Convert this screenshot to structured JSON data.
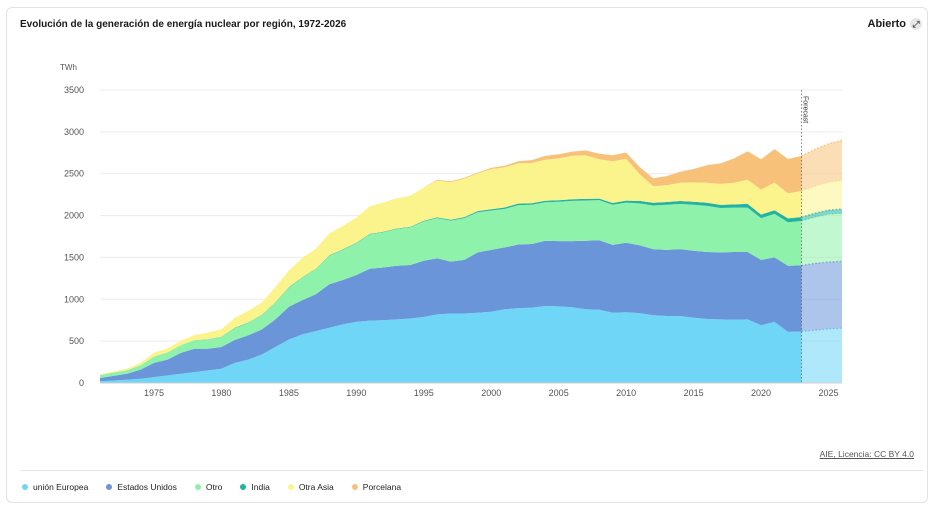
{
  "header": {
    "title": "Evolución de la generación de energía nuclear por región, 1972-2026",
    "open_label": "Abierto",
    "open_icon": "expand-icon"
  },
  "source": "AIE, Licencia: CC BY 4.0",
  "chart_data": {
    "type": "area",
    "stacked": true,
    "ylabel": "TWh",
    "ylim": [
      0,
      3500
    ],
    "yticks": [
      0,
      500,
      1000,
      1500,
      2000,
      2500,
      3000,
      3500
    ],
    "xticks": [
      1975,
      1980,
      1985,
      1990,
      1995,
      2000,
      2005,
      2010,
      2015,
      2020,
      2025
    ],
    "grid": true,
    "legend_position": "bottom",
    "forecast_label": "Forecast",
    "forecast_start": 2023,
    "x": [
      1971,
      1972,
      1973,
      1974,
      1975,
      1976,
      1977,
      1978,
      1979,
      1980,
      1981,
      1982,
      1983,
      1984,
      1985,
      1986,
      1987,
      1988,
      1989,
      1990,
      1991,
      1992,
      1993,
      1994,
      1995,
      1996,
      1997,
      1998,
      1999,
      2000,
      2001,
      2002,
      2003,
      2004,
      2005,
      2006,
      2007,
      2008,
      2009,
      2010,
      2011,
      2012,
      2013,
      2014,
      2015,
      2016,
      2017,
      2018,
      2019,
      2020,
      2021,
      2022,
      2023,
      2024,
      2025,
      2026
    ],
    "series": [
      {
        "name": "unión Europea",
        "color": "#6fd6f7",
        "values": [
          20,
          30,
          40,
          50,
          70,
          90,
          110,
          130,
          150,
          170,
          240,
          280,
          340,
          430,
          520,
          580,
          620,
          660,
          700,
          730,
          745,
          750,
          760,
          770,
          790,
          820,
          830,
          830,
          840,
          850,
          880,
          895,
          900,
          920,
          915,
          905,
          880,
          875,
          840,
          845,
          835,
          810,
          800,
          800,
          780,
          765,
          760,
          755,
          760,
          690,
          730,
          610,
          615,
          630,
          645,
          655
        ]
      },
      {
        "name": "Estados Unidos",
        "color": "#6a96d9",
        "values": [
          40,
          55,
          70,
          110,
          170,
          190,
          250,
          280,
          260,
          260,
          275,
          290,
          300,
          330,
          390,
          410,
          440,
          520,
          530,
          560,
          620,
          630,
          640,
          640,
          670,
          670,
          620,
          640,
          720,
          740,
          740,
          760,
          760,
          780,
          780,
          790,
          820,
          830,
          810,
          830,
          810,
          790,
          790,
          800,
          800,
          800,
          800,
          810,
          805,
          780,
          770,
          790,
          790,
          800,
          800,
          800
        ]
      },
      {
        "name": "Otro",
        "color": "#8ff2aa",
        "values": [
          30,
          35,
          40,
          50,
          70,
          80,
          90,
          100,
          110,
          120,
          140,
          150,
          170,
          200,
          230,
          270,
          300,
          340,
          360,
          380,
          410,
          420,
          440,
          450,
          470,
          480,
          490,
          500,
          480,
          470,
          460,
          470,
          470,
          460,
          470,
          480,
          480,
          480,
          480,
          480,
          500,
          520,
          540,
          540,
          550,
          550,
          530,
          530,
          530,
          500,
          520,
          520,
          530,
          550,
          570,
          570
        ]
      },
      {
        "name": "India",
        "color": "#22b3a3",
        "values": [
          2,
          2,
          2,
          3,
          3,
          3,
          3,
          3,
          3,
          3,
          4,
          4,
          4,
          5,
          5,
          5,
          5,
          6,
          6,
          6,
          6,
          6,
          6,
          6,
          7,
          8,
          10,
          12,
          13,
          15,
          17,
          18,
          18,
          18,
          18,
          19,
          19,
          18,
          20,
          24,
          30,
          32,
          32,
          34,
          36,
          38,
          38,
          38,
          44,
          42,
          44,
          46,
          48,
          50,
          52,
          54
        ]
      },
      {
        "name": "Otra Asia",
        "color": "#fbf48c",
        "values": [
          10,
          15,
          20,
          30,
          50,
          50,
          50,
          60,
          80,
          90,
          120,
          140,
          150,
          180,
          200,
          230,
          240,
          260,
          280,
          300,
          330,
          350,
          360,
          370,
          400,
          440,
          450,
          460,
          450,
          480,
          480,
          480,
          480,
          490,
          500,
          520,
          520,
          470,
          500,
          500,
          320,
          200,
          200,
          220,
          230,
          240,
          250,
          260,
          290,
          300,
          330,
          300,
          310,
          320,
          330,
          340
        ]
      },
      {
        "name": "Porcelana",
        "color": "#f8c17a",
        "values": [
          0,
          0,
          0,
          0,
          0,
          0,
          0,
          0,
          0,
          0,
          0,
          0,
          0,
          0,
          0,
          0,
          0,
          0,
          0,
          0,
          0,
          0,
          0,
          0,
          0,
          10,
          10,
          10,
          10,
          15,
          17,
          25,
          35,
          45,
          50,
          50,
          60,
          65,
          70,
          75,
          85,
          95,
          110,
          130,
          160,
          210,
          245,
          290,
          340,
          360,
          400,
          410,
          420,
          440,
          460,
          480
        ]
      }
    ]
  },
  "legend": [
    {
      "label": "unión Europea",
      "color": "#6fd6f7"
    },
    {
      "label": "Estados Unidos",
      "color": "#6a96d9"
    },
    {
      "label": "Otro",
      "color": "#8ff2aa"
    },
    {
      "label": "India",
      "color": "#22b3a3"
    },
    {
      "label": "Otra Asia",
      "color": "#fbf48c"
    },
    {
      "label": "Porcelana",
      "color": "#f8c17a"
    }
  ]
}
